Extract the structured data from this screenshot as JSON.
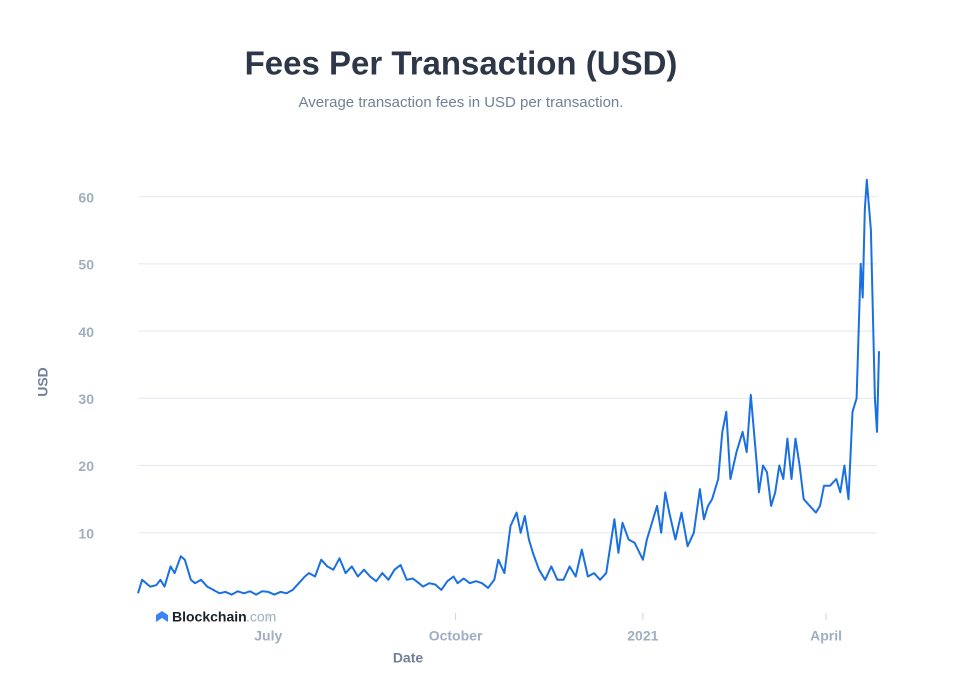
{
  "chart_data": {
    "type": "line",
    "title": "Fees Per Transaction (USD)",
    "subtitle": "Average transaction fees in USD per transaction.",
    "y_label": "USD",
    "x_label": "Date",
    "watermark": {
      "brand": "Blockchain",
      "suffix": ".com"
    },
    "xlim": [
      0,
      364
    ],
    "xticks": [
      {
        "value": 64,
        "label": "July"
      },
      {
        "value": 156,
        "label": "October"
      },
      {
        "value": 248,
        "label": "2021"
      },
      {
        "value": 338,
        "label": "April"
      }
    ],
    "ylim": [
      0,
      65
    ],
    "yticks": [
      10,
      20,
      30,
      40,
      50,
      60
    ],
    "grid": true,
    "x": [
      0,
      2,
      6,
      9,
      11,
      13,
      16,
      18,
      21,
      23,
      26,
      28,
      31,
      34,
      37,
      40,
      43,
      46,
      49,
      52,
      55,
      58,
      61,
      64,
      67,
      70,
      73,
      76,
      79,
      82,
      84,
      87,
      90,
      93,
      96,
      99,
      102,
      105,
      108,
      111,
      114,
      117,
      120,
      123,
      126,
      129,
      132,
      135,
      138,
      140,
      143,
      146,
      149,
      152,
      155,
      157,
      160,
      163,
      166,
      169,
      172,
      175,
      177,
      180,
      183,
      186,
      188,
      190,
      192,
      194,
      197,
      200,
      203,
      206,
      209,
      212,
      215,
      218,
      221,
      224,
      227,
      230,
      234,
      236,
      238,
      241,
      244,
      248,
      250,
      252,
      255,
      257,
      259,
      261,
      264,
      267,
      270,
      273,
      276,
      278,
      280,
      282,
      285,
      287,
      289,
      291,
      294,
      297,
      299,
      301,
      304,
      305,
      307,
      309,
      311,
      313,
      315,
      317,
      319,
      321,
      323,
      325,
      327,
      330,
      333,
      335,
      337,
      340,
      343,
      345,
      347,
      349,
      351,
      353,
      355,
      356,
      357,
      358,
      360,
      362,
      363,
      364
    ],
    "series": [
      {
        "name": "Fees",
        "color": "#1a6fe3",
        "values": [
          1.0,
          3,
          2,
          2.2,
          3,
          2,
          5,
          4,
          6.5,
          6,
          3,
          2.5,
          3,
          2,
          1.5,
          1.0,
          1.2,
          0.8,
          1.3,
          1,
          1.3,
          0.8,
          1.3,
          1.2,
          0.8,
          1.2,
          1.0,
          1.5,
          2.5,
          3.5,
          4,
          3.5,
          6,
          5,
          4.5,
          6.2,
          4,
          5,
          3.5,
          4.5,
          3.5,
          2.8,
          4,
          3,
          4.5,
          5.2,
          3,
          3.2,
          2.5,
          2,
          2.5,
          2.3,
          1.5,
          2.8,
          3.5,
          2.5,
          3.2,
          2.5,
          2.8,
          2.5,
          1.8,
          3,
          6,
          4,
          11,
          13,
          10,
          12.5,
          9,
          7,
          4.5,
          3,
          5,
          3,
          3,
          5,
          3.5,
          7.5,
          3.5,
          4,
          3,
          4,
          12,
          7,
          11.5,
          9,
          8.5,
          6,
          9,
          11,
          14,
          10,
          16,
          13,
          9,
          13,
          8,
          10,
          16.5,
          12,
          14,
          15,
          18,
          25,
          28,
          18,
          22,
          25,
          22,
          30.5,
          20,
          16,
          20,
          19,
          14,
          16,
          20,
          18,
          24,
          18,
          24,
          20,
          15,
          14,
          13,
          14,
          17,
          17,
          18,
          16,
          20,
          15,
          28,
          30,
          50,
          45,
          58,
          62.5,
          55,
          30,
          25,
          37
        ]
      }
    ]
  }
}
